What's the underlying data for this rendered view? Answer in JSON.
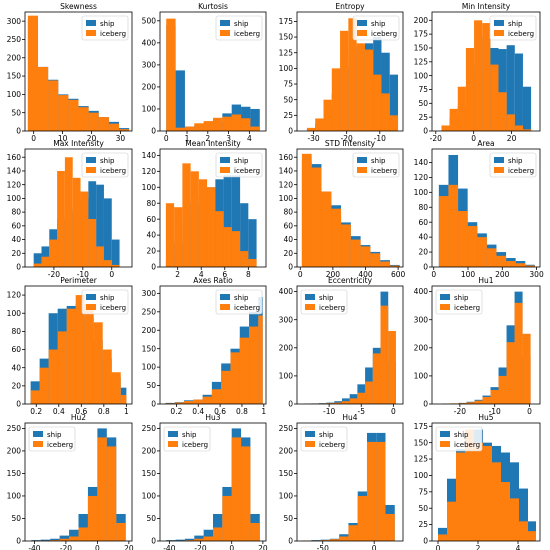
{
  "legend_labels": [
    "ship",
    "iceberg"
  ],
  "colors": {
    "ship": "#1f77b4",
    "iceberg": "#ff7f0e"
  },
  "chart_data": [
    {
      "type": "bar",
      "title": "Skewness",
      "legend": "top-right",
      "xlim": [
        -3,
        34
      ],
      "ylim": [
        0,
        325
      ],
      "xticks": [
        0,
        10,
        20,
        30
      ],
      "yticks": [
        0,
        50,
        100,
        150,
        200,
        250,
        300
      ],
      "bin_edges": [
        -2,
        1.5,
        5,
        8.5,
        12,
        15.5,
        19,
        22.5,
        26,
        29.5,
        33
      ],
      "series": [
        {
          "name": "ship",
          "values": [
            305,
            175,
            140,
            100,
            88,
            68,
            55,
            38,
            25,
            8
          ]
        },
        {
          "name": "iceberg",
          "values": [
            315,
            175,
            138,
            98,
            85,
            65,
            50,
            38,
            20,
            5
          ]
        }
      ]
    },
    {
      "type": "bar",
      "title": "Kurtosis",
      "legend": "top-right",
      "xlim": [
        -0.3,
        4.8
      ],
      "ylim": [
        0,
        540
      ],
      "xticks": [
        0,
        1,
        2,
        3,
        4
      ],
      "yticks": [
        0,
        100,
        200,
        300,
        400,
        500
      ],
      "bin_edges": [
        0,
        0.45,
        0.9,
        1.35,
        1.8,
        2.25,
        2.7,
        3.15,
        3.6,
        4.05,
        4.5
      ],
      "series": [
        {
          "name": "ship",
          "values": [
            480,
            275,
            20,
            25,
            38,
            42,
            80,
            120,
            110,
            100
          ]
        },
        {
          "name": "iceberg",
          "values": [
            510,
            15,
            20,
            35,
            45,
            60,
            65,
            75,
            58,
            20
          ]
        }
      ]
    },
    {
      "type": "bar",
      "title": "Entropy",
      "legend": "top-right",
      "xlim": [
        -35,
        -3
      ],
      "ylim": [
        0,
        190
      ],
      "xticks": [
        -30,
        -20,
        -10
      ],
      "yticks": [
        0,
        25,
        50,
        75,
        100,
        125,
        150,
        175
      ],
      "bin_edges": [
        -32,
        -29.5,
        -27,
        -24.5,
        -22,
        -19.5,
        -17,
        -14.5,
        -12,
        -9.5,
        -7,
        -4.5
      ],
      "series": [
        {
          "name": "ship",
          "values": [
            3,
            12,
            40,
            60,
            100,
            122,
            135,
            140,
            150,
            125,
            90
          ]
        },
        {
          "name": "iceberg",
          "values": [
            5,
            20,
            50,
            100,
            160,
            180,
            140,
            130,
            90,
            60,
            25
          ]
        }
      ]
    },
    {
      "type": "bar",
      "title": "Min Intensity",
      "legend": "top-right",
      "xlim": [
        -22,
        35
      ],
      "ylim": [
        0,
        215
      ],
      "xticks": [
        -20,
        0,
        20
      ],
      "yticks": [
        0,
        25,
        50,
        75,
        100,
        125,
        150,
        175,
        200
      ],
      "bin_edges": [
        -17,
        -12.7,
        -8.4,
        -4.1,
        0.2,
        4.5,
        8.8,
        13.1,
        17.4,
        21.7,
        26,
        30.3
      ],
      "series": [
        {
          "name": "ship",
          "values": [
            8,
            25,
            45,
            80,
            120,
            170,
            150,
            148,
            155,
            140,
            80
          ]
        },
        {
          "name": "iceberg",
          "values": [
            10,
            40,
            80,
            150,
            200,
            195,
            120,
            70,
            30,
            10,
            3
          ]
        }
      ]
    },
    {
      "type": "bar",
      "title": "Max Intensity",
      "legend": "top-right",
      "xlim": [
        -30,
        7
      ],
      "ylim": [
        0,
        172
      ],
      "xticks": [
        -20,
        -10,
        0
      ],
      "yticks": [
        0,
        20,
        40,
        60,
        80,
        100,
        120,
        140,
        160
      ],
      "bin_edges": [
        -27,
        -24.3,
        -21.6,
        -18.9,
        -16.2,
        -13.5,
        -10.8,
        -8.1,
        -5.4,
        -2.7,
        0,
        2.7
      ],
      "series": [
        {
          "name": "ship",
          "values": [
            20,
            30,
            55,
            70,
            78,
            85,
            100,
            125,
            120,
            100,
            40
          ]
        },
        {
          "name": "iceberg",
          "values": [
            5,
            15,
            40,
            140,
            160,
            130,
            110,
            70,
            30,
            10,
            3
          ]
        }
      ]
    },
    {
      "type": "bar",
      "title": "Mean Intensity",
      "legend": "top-right",
      "xlim": [
        0.5,
        9.5
      ],
      "ylim": [
        0,
        148
      ],
      "xticks": [
        2,
        4,
        6,
        8
      ],
      "yticks": [
        0,
        20,
        40,
        60,
        80,
        100,
        120,
        140
      ],
      "bin_edges": [
        1,
        1.7,
        2.4,
        3.1,
        3.8,
        4.5,
        5.2,
        5.9,
        6.6,
        7.3,
        8,
        8.7
      ],
      "series": [
        {
          "name": "ship",
          "values": [
            8,
            30,
            60,
            80,
            90,
            100,
            110,
            115,
            115,
            80,
            60
          ]
        },
        {
          "name": "iceberg",
          "values": [
            80,
            75,
            130,
            120,
            110,
            100,
            70,
            50,
            45,
            20,
            10
          ]
        }
      ]
    },
    {
      "type": "bar",
      "title": "STD Intensity",
      "legend": "top-right",
      "xlim": [
        -20,
        630
      ],
      "ylim": [
        0,
        172
      ],
      "xticks": [
        0,
        200,
        400,
        600
      ],
      "yticks": [
        0,
        20,
        40,
        60,
        80,
        100,
        120,
        140,
        160
      ],
      "bin_edges": [
        10,
        70,
        130,
        190,
        250,
        310,
        370,
        430,
        490,
        550,
        610
      ],
      "series": [
        {
          "name": "ship",
          "values": [
            155,
            150,
            110,
            90,
            65,
            45,
            32,
            22,
            10,
            3
          ]
        },
        {
          "name": "iceberg",
          "values": [
            165,
            145,
            110,
            85,
            62,
            40,
            30,
            20,
            8,
            2
          ]
        }
      ]
    },
    {
      "type": "bar",
      "title": "Area",
      "legend": "top-right",
      "xlim": [
        -5,
        310
      ],
      "ylim": [
        0,
        158
      ],
      "xticks": [
        0,
        100,
        200,
        300
      ],
      "yticks": [
        0,
        20,
        40,
        60,
        80,
        100,
        120,
        140
      ],
      "bin_edges": [
        15,
        43,
        71,
        99,
        127,
        155,
        183,
        211,
        239,
        267,
        295
      ],
      "series": [
        {
          "name": "ship",
          "values": [
            110,
            150,
            105,
            60,
            45,
            30,
            20,
            12,
            8,
            3
          ]
        },
        {
          "name": "iceberg",
          "values": [
            95,
            110,
            75,
            55,
            40,
            25,
            15,
            8,
            5,
            2
          ]
        }
      ]
    },
    {
      "type": "bar",
      "title": "Perimeter",
      "legend": "top-right",
      "xlim": [
        0.1,
        1.05
      ],
      "ylim": [
        0,
        130
      ],
      "xticks": [
        0.2,
        0.4,
        0.6,
        0.8,
        1.0
      ],
      "yticks": [
        0,
        20,
        40,
        60,
        80,
        100,
        120
      ],
      "bin_edges": [
        0.15,
        0.23,
        0.31,
        0.39,
        0.47,
        0.55,
        0.63,
        0.71,
        0.79,
        0.87,
        0.95,
        1.0
      ],
      "series": [
        {
          "name": "ship",
          "values": [
            25,
            50,
            100,
            105,
            108,
            110,
            95,
            70,
            50,
            30,
            18
          ]
        },
        {
          "name": "iceberg",
          "values": [
            15,
            40,
            60,
            80,
            105,
            120,
            110,
            90,
            60,
            35,
            10
          ]
        }
      ]
    },
    {
      "type": "bar",
      "title": "Axes Ratio",
      "legend": "top-right",
      "xlim": [
        0.05,
        1.02
      ],
      "ylim": [
        0,
        320
      ],
      "xticks": [
        0.2,
        0.4,
        0.6,
        0.8,
        1.0
      ],
      "yticks": [
        0,
        50,
        100,
        150,
        200,
        250,
        300
      ],
      "bin_edges": [
        0.1,
        0.185,
        0.27,
        0.355,
        0.44,
        0.525,
        0.61,
        0.695,
        0.78,
        0.865,
        0.95,
        0.99
      ],
      "series": [
        {
          "name": "ship",
          "values": [
            3,
            5,
            10,
            12,
            25,
            60,
            110,
            150,
            210,
            250,
            290
          ]
        },
        {
          "name": "iceberg",
          "values": [
            2,
            4,
            8,
            12,
            20,
            40,
            90,
            140,
            180,
            210,
            240
          ]
        }
      ]
    },
    {
      "type": "bar",
      "title": "Eccentricity",
      "legend": "top-left",
      "xlim": [
        -15,
        1.5
      ],
      "ylim": [
        0,
        420
      ],
      "xticks": [
        -10,
        -5,
        0
      ],
      "yticks": [
        0,
        100,
        200,
        300,
        400
      ],
      "bin_edges": [
        -14,
        -12.8,
        -11.6,
        -10.4,
        -9.2,
        -8,
        -6.8,
        -5.6,
        -4.4,
        -3.2,
        -2,
        -0.8,
        0.4
      ],
      "series": [
        {
          "name": "ship",
          "values": [
            1,
            2,
            3,
            5,
            10,
            20,
            35,
            70,
            130,
            200,
            400,
            150
          ]
        },
        {
          "name": "iceberg",
          "values": [
            1,
            1,
            2,
            3,
            5,
            10,
            20,
            40,
            80,
            180,
            350,
            260
          ]
        }
      ]
    },
    {
      "type": "bar",
      "title": "Hu1",
      "legend": "top-left",
      "xlim": [
        -28,
        3
      ],
      "ylim": [
        0,
        420
      ],
      "xticks": [
        -20,
        -10,
        0
      ],
      "yticks": [
        0,
        100,
        200,
        300,
        400
      ],
      "bin_edges": [
        -25,
        -22.7,
        -20.4,
        -18.1,
        -15.8,
        -13.5,
        -11.2,
        -8.9,
        -6.6,
        -4.3,
        -2,
        0.3
      ],
      "series": [
        {
          "name": "ship",
          "values": [
            1,
            2,
            4,
            8,
            15,
            30,
            60,
            130,
            280,
            400,
            170
          ]
        },
        {
          "name": "iceberg",
          "values": [
            1,
            2,
            3,
            6,
            12,
            25,
            50,
            100,
            220,
            360,
            250
          ]
        }
      ]
    },
    {
      "type": "bar",
      "title": "Hu2",
      "legend": "top-left",
      "xlim": [
        -46,
        22
      ],
      "ylim": [
        0,
        262
      ],
      "xticks": [
        -40,
        -20,
        0,
        20
      ],
      "yticks": [
        0,
        50,
        100,
        150,
        200,
        250
      ],
      "bin_edges": [
        -42,
        -36,
        -30,
        -24,
        -18,
        -12,
        -6,
        0,
        6,
        12,
        18
      ],
      "series": [
        {
          "name": "ship",
          "values": [
            2,
            3,
            5,
            12,
            25,
            60,
            120,
            250,
            230,
            60
          ]
        },
        {
          "name": "iceberg",
          "values": [
            1,
            1,
            2,
            5,
            10,
            30,
            100,
            230,
            210,
            40
          ]
        }
      ]
    },
    {
      "type": "bar",
      "title": "Hu3",
      "legend": "top-left",
      "xlim": [
        -46,
        22
      ],
      "ylim": [
        0,
        262
      ],
      "xticks": [
        -40,
        -20,
        0,
        20
      ],
      "yticks": [
        0,
        50,
        100,
        150,
        200,
        250
      ],
      "bin_edges": [
        -42,
        -36,
        -30,
        -24,
        -18,
        -12,
        -6,
        0,
        6,
        12,
        18
      ],
      "series": [
        {
          "name": "ship",
          "values": [
            2,
            3,
            5,
            12,
            25,
            60,
            120,
            250,
            230,
            60
          ]
        },
        {
          "name": "iceberg",
          "values": [
            1,
            1,
            2,
            5,
            10,
            30,
            100,
            230,
            210,
            40
          ]
        }
      ]
    },
    {
      "type": "bar",
      "title": "Hu4",
      "legend": "top-left",
      "xlim": [
        -75,
        28
      ],
      "ylim": [
        0,
        262
      ],
      "xticks": [
        -50,
        0
      ],
      "yticks": [
        0,
        50,
        100,
        150,
        200,
        250
      ],
      "bin_edges": [
        -70,
        -61,
        -52,
        -43,
        -34,
        -25,
        -16,
        -7,
        2,
        11,
        20
      ],
      "series": [
        {
          "name": "ship",
          "values": [
            1,
            2,
            3,
            5,
            15,
            40,
            110,
            240,
            240,
            80
          ]
        },
        {
          "name": "iceberg",
          "values": [
            1,
            1,
            2,
            4,
            10,
            35,
            100,
            220,
            220,
            60
          ]
        }
      ]
    },
    {
      "type": "bar",
      "title": "Hu5",
      "legend": "top-left",
      "xlim": [
        -0.3,
        5.1
      ],
      "ylim": [
        0,
        180
      ],
      "xticks": [
        0,
        2,
        4
      ],
      "yticks": [
        0,
        25,
        50,
        75,
        100,
        125,
        150,
        175
      ],
      "bin_edges": [
        0,
        0.45,
        0.9,
        1.35,
        1.8,
        2.25,
        2.7,
        3.15,
        3.6,
        4.05,
        4.5,
        4.9
      ],
      "series": [
        {
          "name": "ship",
          "values": [
            20,
            95,
            140,
            150,
            170,
            150,
            145,
            135,
            120,
            80,
            30
          ]
        },
        {
          "name": "iceberg",
          "values": [
            10,
            60,
            135,
            170,
            150,
            145,
            120,
            90,
            65,
            30,
            15
          ]
        }
      ]
    }
  ]
}
